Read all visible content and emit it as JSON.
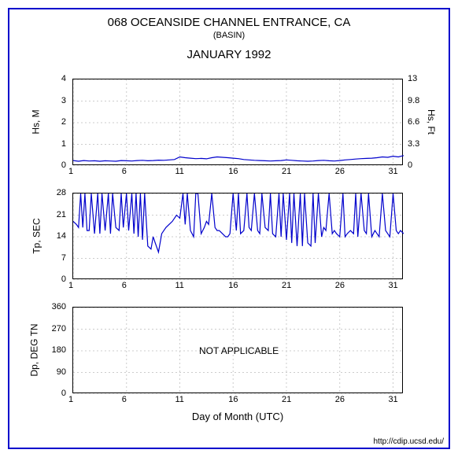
{
  "title_main": "068 OCEANSIDE CHANNEL ENTRANCE, CA",
  "title_sub": "(BASIN)",
  "title_month": "JANUARY 1992",
  "xlabel": "Day of Month (UTC)",
  "footer_url": "http://cdip.ucsd.edu/",
  "line_color": "#0000cc",
  "grid_color": "#cccccc",
  "axis_color": "#000000",
  "background_color": "#ffffff",
  "x_domain": [
    1,
    32
  ],
  "x_ticks": [
    1,
    6,
    11,
    16,
    21,
    26,
    31
  ],
  "panels": {
    "hs": {
      "ylabel_left": "Hs, M",
      "ylabel_right": "Hs, Ft",
      "ylim": [
        0,
        4
      ],
      "yticks": [
        0,
        1,
        2,
        3,
        4
      ],
      "yticks_right": [
        0,
        3.3,
        6.6,
        9.8,
        13
      ],
      "data": [
        [
          1,
          0.25
        ],
        [
          1.5,
          0.22
        ],
        [
          2,
          0.25
        ],
        [
          2.5,
          0.23
        ],
        [
          3,
          0.24
        ],
        [
          3.5,
          0.22
        ],
        [
          4,
          0.24
        ],
        [
          4.5,
          0.23
        ],
        [
          5,
          0.22
        ],
        [
          5.5,
          0.25
        ],
        [
          6,
          0.24
        ],
        [
          6.5,
          0.23
        ],
        [
          7,
          0.25
        ],
        [
          7.5,
          0.26
        ],
        [
          8,
          0.24
        ],
        [
          8.5,
          0.25
        ],
        [
          9,
          0.27
        ],
        [
          9.5,
          0.26
        ],
        [
          10,
          0.28
        ],
        [
          10.5,
          0.3
        ],
        [
          11,
          0.42
        ],
        [
          11.5,
          0.38
        ],
        [
          12,
          0.36
        ],
        [
          12.5,
          0.34
        ],
        [
          13,
          0.35
        ],
        [
          13.5,
          0.33
        ],
        [
          14,
          0.38
        ],
        [
          14.5,
          0.42
        ],
        [
          15,
          0.4
        ],
        [
          15.5,
          0.38
        ],
        [
          16,
          0.36
        ],
        [
          16.5,
          0.34
        ],
        [
          17,
          0.3
        ],
        [
          17.5,
          0.28
        ],
        [
          18,
          0.26
        ],
        [
          18.5,
          0.25
        ],
        [
          19,
          0.24
        ],
        [
          19.5,
          0.23
        ],
        [
          20,
          0.24
        ],
        [
          20.5,
          0.25
        ],
        [
          21,
          0.28
        ],
        [
          21.5,
          0.26
        ],
        [
          22,
          0.24
        ],
        [
          22.5,
          0.23
        ],
        [
          23,
          0.22
        ],
        [
          23.5,
          0.23
        ],
        [
          24,
          0.25
        ],
        [
          24.5,
          0.26
        ],
        [
          25,
          0.24
        ],
        [
          25.5,
          0.23
        ],
        [
          26,
          0.25
        ],
        [
          26.5,
          0.28
        ],
        [
          27,
          0.3
        ],
        [
          27.5,
          0.32
        ],
        [
          28,
          0.34
        ],
        [
          28.5,
          0.35
        ],
        [
          29,
          0.36
        ],
        [
          29.5,
          0.38
        ],
        [
          30,
          0.42
        ],
        [
          30.5,
          0.4
        ],
        [
          31,
          0.45
        ],
        [
          31.5,
          0.42
        ],
        [
          32,
          0.48
        ]
      ]
    },
    "tp": {
      "ylabel_left": "Tp, SEC",
      "ylim": [
        0,
        28
      ],
      "yticks": [
        0,
        7,
        14,
        21,
        28
      ],
      "data": [
        [
          1,
          19
        ],
        [
          1.3,
          18
        ],
        [
          1.5,
          17
        ],
        [
          1.7,
          28
        ],
        [
          1.9,
          17
        ],
        [
          2.1,
          28
        ],
        [
          2.3,
          16
        ],
        [
          2.5,
          16
        ],
        [
          2.7,
          28
        ],
        [
          3,
          15
        ],
        [
          3.3,
          28
        ],
        [
          3.5,
          15
        ],
        [
          3.7,
          28
        ],
        [
          4,
          16
        ],
        [
          4.3,
          28
        ],
        [
          4.5,
          15
        ],
        [
          4.7,
          28
        ],
        [
          5,
          17
        ],
        [
          5.3,
          16
        ],
        [
          5.5,
          28
        ],
        [
          5.7,
          17
        ],
        [
          6,
          28
        ],
        [
          6.2,
          16
        ],
        [
          6.5,
          28
        ],
        [
          6.7,
          15
        ],
        [
          6.9,
          28
        ],
        [
          7.1,
          14
        ],
        [
          7.3,
          28
        ],
        [
          7.5,
          13
        ],
        [
          7.7,
          28
        ],
        [
          8,
          11
        ],
        [
          8.3,
          10
        ],
        [
          8.5,
          14
        ],
        [
          8.7,
          12
        ],
        [
          9,
          9
        ],
        [
          9.3,
          15
        ],
        [
          9.5,
          16
        ],
        [
          9.7,
          17
        ],
        [
          10,
          18
        ],
        [
          10.3,
          19
        ],
        [
          10.5,
          20
        ],
        [
          10.7,
          21
        ],
        [
          11,
          20
        ],
        [
          11.3,
          28
        ],
        [
          11.5,
          18
        ],
        [
          11.7,
          28
        ],
        [
          12,
          16
        ],
        [
          12.3,
          14
        ],
        [
          12.5,
          28
        ],
        [
          12.7,
          28
        ],
        [
          13,
          15
        ],
        [
          13.3,
          17
        ],
        [
          13.5,
          19
        ],
        [
          13.7,
          18
        ],
        [
          14,
          28
        ],
        [
          14.3,
          17
        ],
        [
          14.5,
          16
        ],
        [
          14.7,
          16
        ],
        [
          15,
          15
        ],
        [
          15.3,
          14
        ],
        [
          15.5,
          14
        ],
        [
          15.7,
          15
        ],
        [
          16,
          28
        ],
        [
          16.3,
          16
        ],
        [
          16.5,
          28
        ],
        [
          16.7,
          15
        ],
        [
          17,
          16
        ],
        [
          17.3,
          28
        ],
        [
          17.5,
          17
        ],
        [
          17.7,
          16
        ],
        [
          18,
          28
        ],
        [
          18.3,
          16
        ],
        [
          18.5,
          15
        ],
        [
          18.7,
          28
        ],
        [
          19,
          17
        ],
        [
          19.3,
          16
        ],
        [
          19.5,
          28
        ],
        [
          19.7,
          15
        ],
        [
          20,
          14
        ],
        [
          20.3,
          28
        ],
        [
          20.5,
          14
        ],
        [
          20.7,
          28
        ],
        [
          21,
          13
        ],
        [
          21.3,
          28
        ],
        [
          21.5,
          12
        ],
        [
          21.7,
          28
        ],
        [
          22,
          11
        ],
        [
          22.3,
          28
        ],
        [
          22.5,
          11
        ],
        [
          22.7,
          28
        ],
        [
          23,
          12
        ],
        [
          23.3,
          11
        ],
        [
          23.5,
          28
        ],
        [
          23.7,
          12
        ],
        [
          24,
          28
        ],
        [
          24.3,
          14
        ],
        [
          24.5,
          17
        ],
        [
          24.7,
          16
        ],
        [
          25,
          28
        ],
        [
          25.3,
          15
        ],
        [
          25.5,
          16
        ],
        [
          25.7,
          15
        ],
        [
          26,
          14
        ],
        [
          26.3,
          28
        ],
        [
          26.5,
          14
        ],
        [
          26.7,
          15
        ],
        [
          27,
          16
        ],
        [
          27.3,
          15
        ],
        [
          27.5,
          28
        ],
        [
          27.7,
          14
        ],
        [
          28,
          28
        ],
        [
          28.3,
          16
        ],
        [
          28.5,
          15
        ],
        [
          28.7,
          28
        ],
        [
          29,
          14
        ],
        [
          29.3,
          16
        ],
        [
          29.5,
          15
        ],
        [
          29.7,
          14
        ],
        [
          30,
          28
        ],
        [
          30.3,
          16
        ],
        [
          30.5,
          15
        ],
        [
          30.7,
          14
        ],
        [
          31,
          28
        ],
        [
          31.3,
          16
        ],
        [
          31.5,
          15
        ],
        [
          31.7,
          16
        ],
        [
          32,
          15
        ]
      ]
    },
    "dp": {
      "ylabel_left": "Dp, DEG TN",
      "ylim": [
        0,
        360
      ],
      "yticks": [
        0,
        90,
        180,
        270,
        360
      ],
      "not_applicable": "NOT APPLICABLE"
    }
  }
}
